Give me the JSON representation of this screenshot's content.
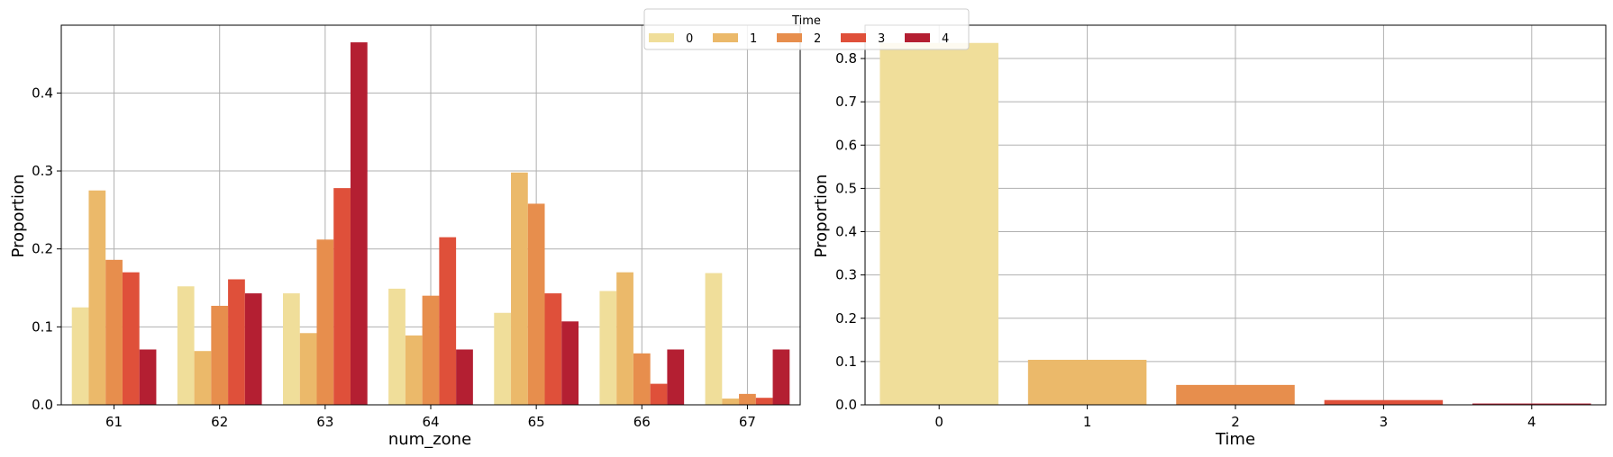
{
  "colors": [
    "#f0de9a",
    "#ebb96a",
    "#e78e4d",
    "#df503a",
    "#b41f32"
  ],
  "legend": {
    "title": "Time",
    "labels": [
      "0",
      "1",
      "2",
      "3",
      "4"
    ],
    "placement": "top-center"
  },
  "chart_data": [
    {
      "type": "bar",
      "xlabel": "num_zone",
      "ylabel": "Proportion",
      "categories": [
        "61",
        "62",
        "63",
        "64",
        "65",
        "66",
        "67"
      ],
      "ylim": [
        0,
        0.487
      ],
      "yticks": [
        0.0,
        0.1,
        0.2,
        0.3,
        0.4
      ],
      "ytick_labels": [
        "0.0",
        "0.1",
        "0.2",
        "0.3",
        "0.4"
      ],
      "grid": true,
      "series": [
        {
          "name": "0",
          "values": [
            0.125,
            0.152,
            0.143,
            0.149,
            0.118,
            0.146,
            0.169
          ]
        },
        {
          "name": "1",
          "values": [
            0.275,
            0.069,
            0.092,
            0.089,
            0.298,
            0.17,
            0.008
          ]
        },
        {
          "name": "2",
          "values": [
            0.186,
            0.127,
            0.212,
            0.14,
            0.258,
            0.066,
            0.014
          ]
        },
        {
          "name": "3",
          "values": [
            0.17,
            0.161,
            0.278,
            0.215,
            0.143,
            0.027,
            0.009
          ]
        },
        {
          "name": "4",
          "values": [
            0.071,
            0.143,
            0.465,
            0.071,
            0.107,
            0.071,
            0.071
          ]
        }
      ]
    },
    {
      "type": "bar",
      "xlabel": "Time",
      "ylabel": "Proportion",
      "categories": [
        "0",
        "1",
        "2",
        "3",
        "4"
      ],
      "values": [
        0.836,
        0.104,
        0.046,
        0.011,
        0.003
      ],
      "ylim": [
        0,
        0.877
      ],
      "yticks": [
        0.0,
        0.1,
        0.2,
        0.3,
        0.4,
        0.5,
        0.6,
        0.7,
        0.8
      ],
      "ytick_labels": [
        "0.0",
        "0.1",
        "0.2",
        "0.3",
        "0.4",
        "0.5",
        "0.6",
        "0.7",
        "0.8"
      ],
      "grid": true
    }
  ]
}
